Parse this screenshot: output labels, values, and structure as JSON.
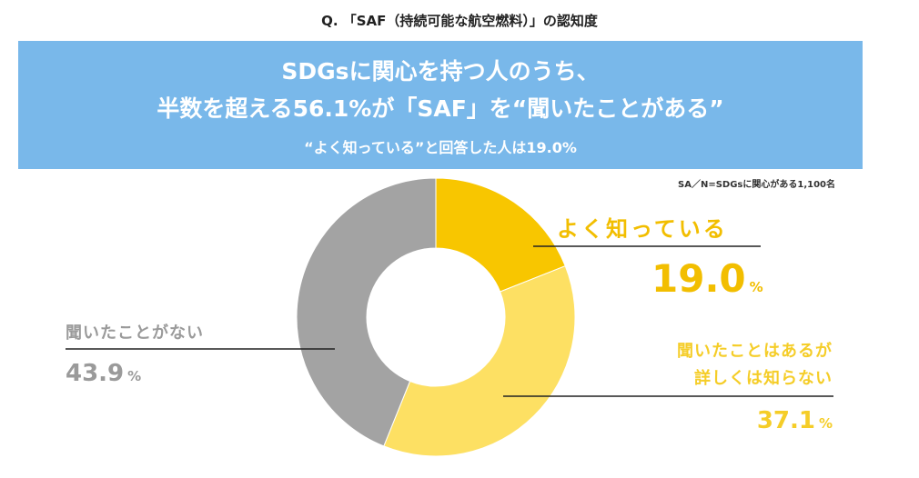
{
  "question": "Q. 「SAF（持続可能な航空燃料）」の認知度",
  "banner": {
    "line1": "SDGsに関心を持つ人のうち、",
    "line2": "半数を超える56.1%が「SAF」を“聞いたことがある”",
    "line3": "“よく知っている”と回答した人は19.0%"
  },
  "note": "SA／N=SDGsに関心がある1,100名",
  "unit": "%",
  "colors": {
    "banner": "#79b8ea",
    "well_known": "#f8c600",
    "heard_not_known": "#fde063",
    "not_heard": "#a3a3a3"
  },
  "chart_data": {
    "type": "pie",
    "donut": true,
    "categories": [
      "よく知っている",
      "聞いたことはあるが詳しくは知らない",
      "聞いたことがない"
    ],
    "values": [
      19.0,
      37.1,
      43.9
    ],
    "labels": {
      "well_known": "よく知っている",
      "heard_line1": "聞いたことはあるが",
      "heard_line2": "詳しくは知らない",
      "not_heard": "聞いたことがない"
    },
    "value_labels": [
      "19.0",
      "37.1",
      "43.9"
    ]
  }
}
